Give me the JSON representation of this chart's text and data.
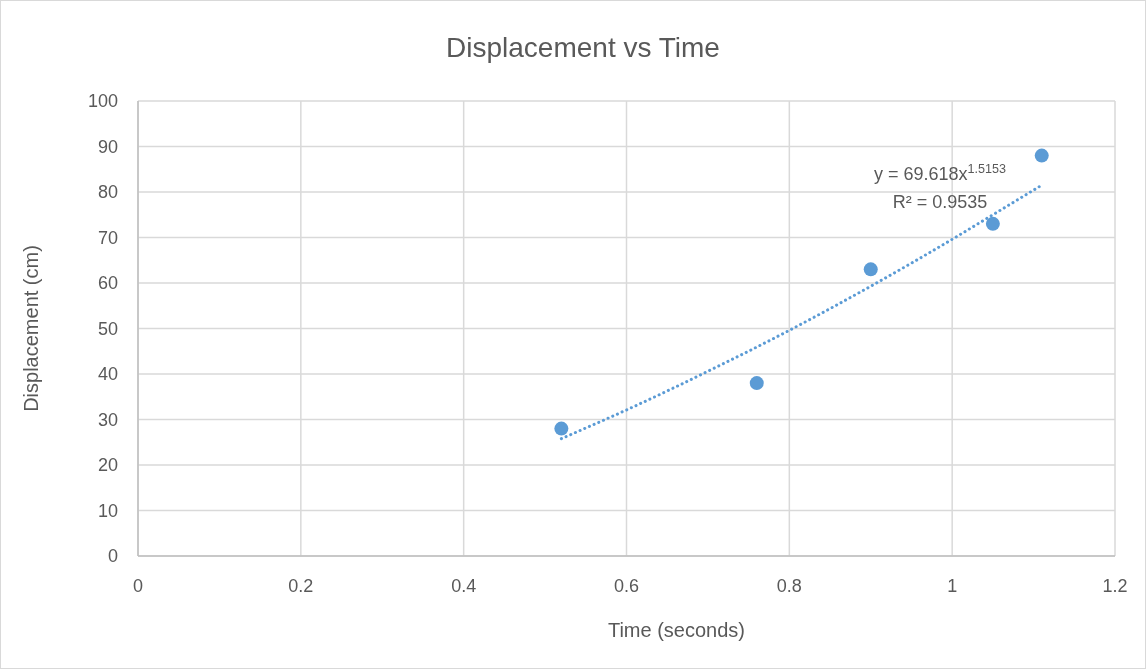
{
  "chart_data": {
    "type": "scatter",
    "title": "Displacement vs Time",
    "xlabel": "Time (seconds)",
    "ylabel": "Displacement (cm)",
    "series": [
      {
        "color": "#5b9bd5",
        "x": [
          0.52,
          0.76,
          0.9,
          1.05,
          1.11
        ],
        "values": [
          28,
          38,
          63,
          73,
          88
        ],
        "marker": "circle"
      },
      {
        "type": "line",
        "color": "#5b9bd5",
        "x": [
          0.52,
          0.6,
          0.7,
          0.8,
          0.9,
          1.0,
          1.05,
          1.11
        ],
        "values": [
          25.8,
          32.1,
          40.6,
          49.6,
          59.3,
          69.6,
          75.0,
          81.5
        ],
        "line_style": "dotted"
      }
    ],
    "annotations": [
      "y = 69.618x$^{1.5153}$",
      "R² = 0.9535"
    ],
    "xlim": [
      0,
      1.2
    ],
    "xticks": [
      0,
      0.2,
      0.4,
      0.6,
      0.8,
      1,
      1.2
    ],
    "ylim": [
      0,
      100
    ],
    "yticks": [
      0,
      10,
      20,
      30,
      40,
      50,
      60,
      70,
      80,
      90,
      100
    ],
    "grid": true
  }
}
